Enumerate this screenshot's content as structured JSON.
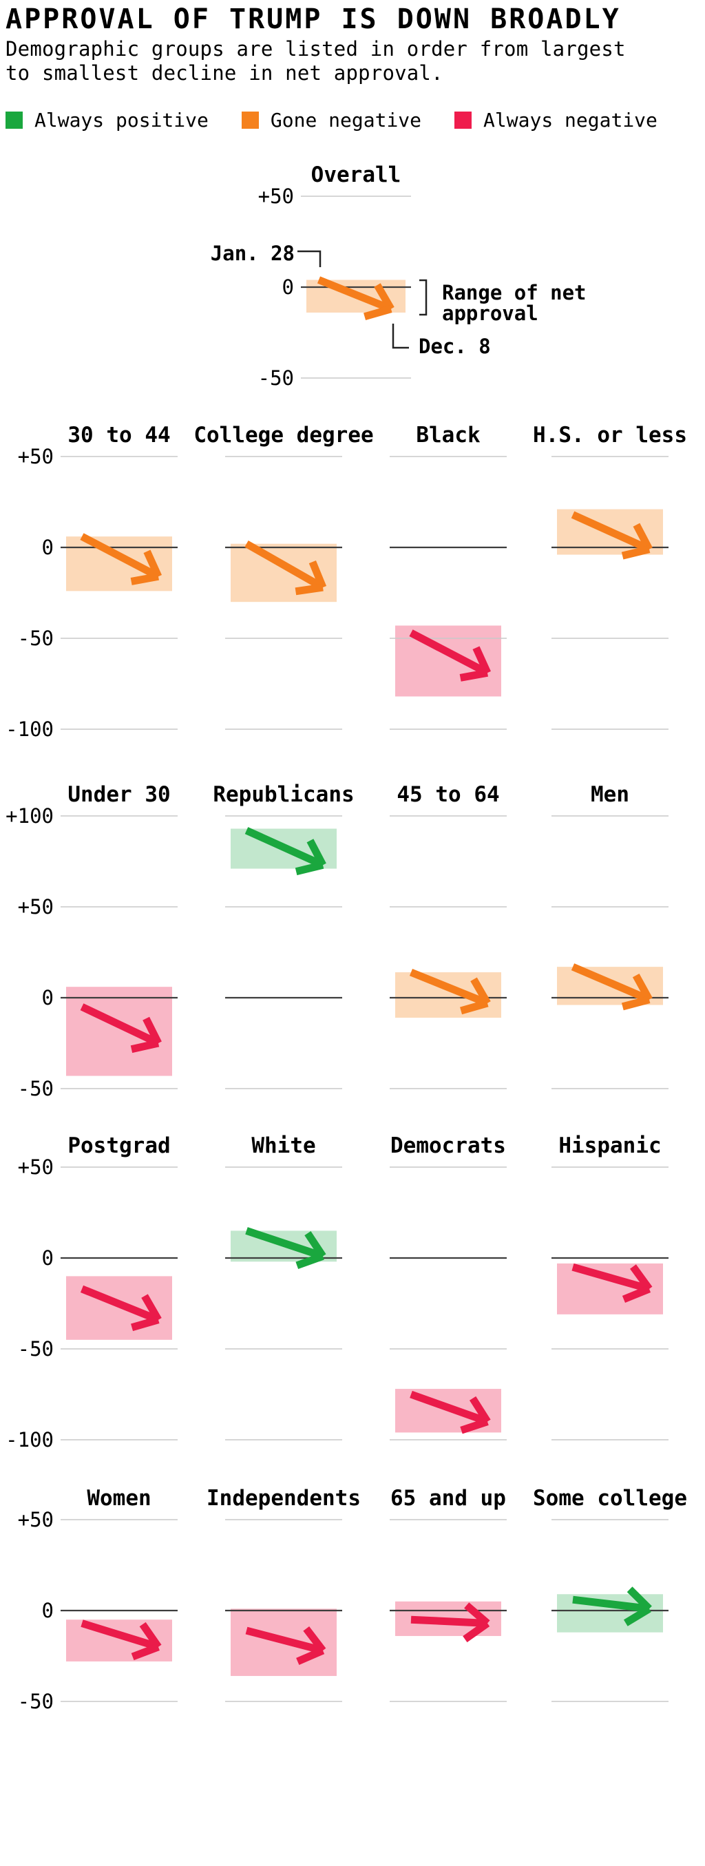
{
  "header": {
    "title": "APPROVAL OF TRUMP IS DOWN BROADLY",
    "subtitle": "Demographic groups are listed in order from largest to smallest decline in net approval."
  },
  "legend": {
    "items": [
      {
        "label": "Always positive",
        "color": "#1aa73e",
        "status": "always-positive"
      },
      {
        "label": "Gone negative",
        "color": "#f5811d",
        "status": "gone-negative"
      },
      {
        "label": "Always negative",
        "color": "#ef1d4d",
        "status": "always-negative"
      }
    ]
  },
  "colors": {
    "always-positive": {
      "arrow": "#1aa73e",
      "band": "#c2e7cd"
    },
    "gone-negative": {
      "arrow": "#f57d1b",
      "band": "#fcd9b8"
    },
    "always-negative": {
      "arrow": "#ea1b4a",
      "band": "#f9b7c6"
    },
    "gridline": "#c9c9c9",
    "zero_line": "#3d3d3d",
    "text": "#000000",
    "annotation_line": "#222222"
  },
  "annotations": {
    "start_label": "Jan. 28",
    "end_label": "Dec. 8",
    "range_label_line1": "Range of net",
    "range_label_line2": "approval"
  },
  "chart_data": {
    "type": "line",
    "variant": "arrow-range-small-multiples",
    "title": "APPROVAL OF TRUMP IS DOWN BROADLY",
    "unit": "net approval, percentage points",
    "start_date": "Jan. 28",
    "end_date": "Dec. 8",
    "grid": true,
    "rows": [
      {
        "panels": [
          "Overall"
        ],
        "ticks": [
          50,
          0,
          -50
        ]
      },
      {
        "panels": [
          "30 to 44",
          "College degree",
          "Black",
          "H.S. or less"
        ],
        "ticks": [
          50,
          0,
          -50,
          -100
        ]
      },
      {
        "panels": [
          "Under 30",
          "Republicans",
          "45 to 64",
          "Men"
        ],
        "ticks": [
          100,
          50,
          0,
          -50
        ]
      },
      {
        "panels": [
          "Postgrad",
          "White",
          "Democrats",
          "Hispanic"
        ],
        "ticks": [
          50,
          0,
          -50,
          -100
        ]
      },
      {
        "panels": [
          "Women",
          "Independents",
          "65 and up",
          "Some college"
        ],
        "ticks": [
          50,
          0,
          -50
        ]
      }
    ],
    "series": [
      {
        "name": "Overall",
        "status": "gone-negative",
        "start": 4,
        "end": -12,
        "range": [
          4,
          -14
        ]
      },
      {
        "name": "30 to 44",
        "status": "gone-negative",
        "start": 6,
        "end": -16,
        "range": [
          6,
          -24
        ]
      },
      {
        "name": "College degree",
        "status": "gone-negative",
        "start": 2,
        "end": -22,
        "range": [
          2,
          -30
        ]
      },
      {
        "name": "Black",
        "status": "always-negative",
        "start": -47,
        "end": -69,
        "range": [
          -43,
          -82
        ]
      },
      {
        "name": "H.S. or less",
        "status": "gone-negative",
        "start": 18,
        "end": -1,
        "range": [
          21,
          -4
        ]
      },
      {
        "name": "Under 30",
        "status": "always-negative",
        "start": -5,
        "end": -25,
        "range": [
          6,
          -43
        ]
      },
      {
        "name": "Republicans",
        "status": "always-positive",
        "start": 92,
        "end": 73,
        "range": [
          93,
          71
        ]
      },
      {
        "name": "45 to 64",
        "status": "gone-negative",
        "start": 14,
        "end": -3,
        "range": [
          14,
          -11
        ]
      },
      {
        "name": "Men",
        "status": "gone-negative",
        "start": 17,
        "end": -1,
        "range": [
          17,
          -4
        ]
      },
      {
        "name": "Postgrad",
        "status": "always-negative",
        "start": -17,
        "end": -34,
        "range": [
          -10,
          -45
        ]
      },
      {
        "name": "White",
        "status": "always-positive",
        "start": 15,
        "end": 1,
        "range": [
          15,
          -2
        ]
      },
      {
        "name": "Democrats",
        "status": "always-negative",
        "start": -75,
        "end": -90,
        "range": [
          -72,
          -96
        ]
      },
      {
        "name": "Hispanic",
        "status": "always-negative",
        "start": -5,
        "end": -17,
        "range": [
          -3,
          -31
        ]
      },
      {
        "name": "Women",
        "status": "always-negative",
        "start": -7,
        "end": -20,
        "range": [
          -5,
          -28
        ]
      },
      {
        "name": "Independents",
        "status": "always-negative",
        "start": -11,
        "end": -22,
        "range": [
          1,
          -36
        ]
      },
      {
        "name": "65 and up",
        "status": "always-negative",
        "start": -5,
        "end": -7,
        "range": [
          5,
          -14
        ]
      },
      {
        "name": "Some college",
        "status": "always-positive",
        "start": 6,
        "end": 1,
        "range": [
          9,
          -12
        ]
      }
    ]
  }
}
